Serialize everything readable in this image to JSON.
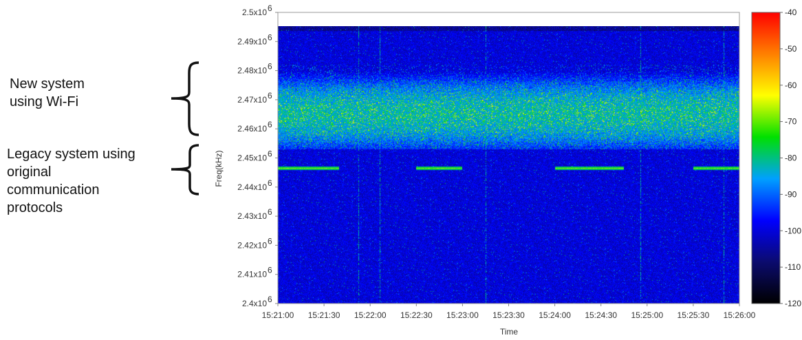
{
  "annotations": {
    "new_system": "New system\nusing Wi-Fi",
    "legacy_system": "Legacy system using\noriginal\ncommunication\nprotocols"
  },
  "chart_data": {
    "type": "heatmap",
    "title": "",
    "xlabel": "Time",
    "ylabel": "Freq(kHz)",
    "x_ticks": [
      "15:21:00",
      "15:21:30",
      "15:22:00",
      "15:22:30",
      "15:23:00",
      "15:23:30",
      "15:24:00",
      "15:24:30",
      "15:25:00",
      "15:25:30",
      "15:26:00"
    ],
    "y_ticks": [
      {
        "mant": "2.4x10",
        "exp": "6"
      },
      {
        "mant": "2.41x10",
        "exp": "6"
      },
      {
        "mant": "2.42x10",
        "exp": "6"
      },
      {
        "mant": "2.43x10",
        "exp": "6"
      },
      {
        "mant": "2.44x10",
        "exp": "6"
      },
      {
        "mant": "2.45x10",
        "exp": "6"
      },
      {
        "mant": "2.46x10",
        "exp": "6"
      },
      {
        "mant": "2.47x10",
        "exp": "6"
      },
      {
        "mant": "2.48x10",
        "exp": "6"
      },
      {
        "mant": "2.49x10",
        "exp": "6"
      },
      {
        "mant": "2.5x10",
        "exp": "6"
      }
    ],
    "xlim": [
      "15:21:00",
      "15:26:00"
    ],
    "ylim": [
      2400000,
      2500000
    ],
    "data_top_kHz": 2495000,
    "colorbar": {
      "range": [
        -120,
        -40
      ],
      "ticks": [
        "-40",
        "-50",
        "-60",
        "-70",
        "-80",
        "-90",
        "-100",
        "-110",
        "-120"
      ],
      "colors": [
        "#000000",
        "#0b0b6e",
        "#0000ff",
        "#00a0ff",
        "#00e000",
        "#ffff00",
        "#ff8000",
        "#ff0000"
      ]
    },
    "background_level": -100,
    "bands": [
      {
        "name": "wifi",
        "low_kHz": 2453000,
        "high_kHz": 2482000,
        "center_kHz": 2465000,
        "peak_level": -78
      },
      {
        "name": "legacy",
        "freq_kHz": 2446500,
        "level": -68,
        "bursts": [
          [
            "15:21:00",
            "15:21:40"
          ],
          [
            "15:22:30",
            "15:23:00"
          ],
          [
            "15:24:00",
            "15:24:45"
          ],
          [
            "15:25:30",
            "15:26:00"
          ]
        ]
      }
    ],
    "grid": false,
    "legend": "colorbar-right"
  }
}
